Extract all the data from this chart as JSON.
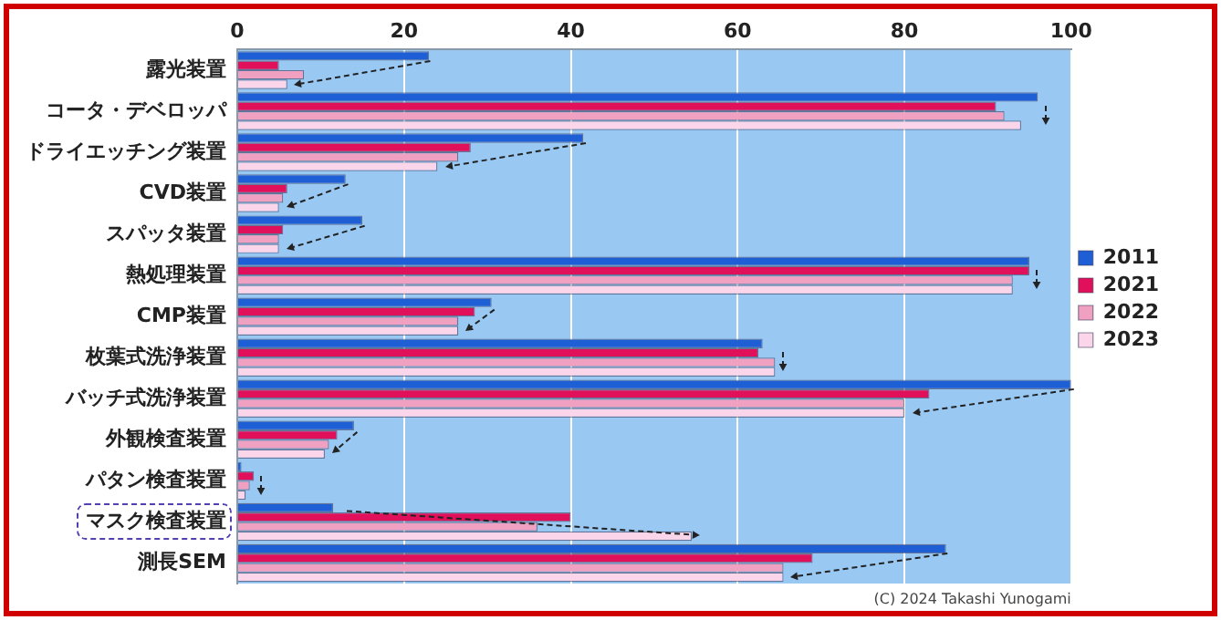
{
  "chart_data": {
    "type": "bar",
    "orientation": "horizontal",
    "categories": [
      "露光装置",
      "コータ・デベロッパ",
      "ドライエッチング装置",
      "CVD装置",
      "スパッタ装置",
      "熱処理装置",
      "CMP装置",
      "枚葉式洗浄装置",
      "バッチ式洗浄装置",
      "外観検査装置",
      "パタン検査装置",
      "マスク検査装置",
      "測長SEM"
    ],
    "series": [
      {
        "name": "2011",
        "color": "#1f5fd6",
        "values": [
          23,
          96,
          41.5,
          13,
          15,
          95,
          30.5,
          63,
          100,
          14,
          0.5,
          11.5,
          85
        ]
      },
      {
        "name": "2021",
        "color": "#e0105a",
        "values": [
          5,
          91,
          28,
          6,
          5.5,
          95,
          28.5,
          62.5,
          83,
          12,
          2,
          40,
          69
        ]
      },
      {
        "name": "2022",
        "color": "#f0a0c0",
        "values": [
          8,
          92,
          26.5,
          5.5,
          5,
          93,
          26.5,
          64.5,
          80,
          11,
          1.5,
          36,
          65.5
        ]
      },
      {
        "name": "2023",
        "color": "#fbd6ea",
        "values": [
          6,
          94,
          24,
          5,
          5,
          93,
          26.5,
          64.5,
          80,
          10.5,
          1,
          54.5,
          65.5
        ]
      }
    ],
    "xlim": [
      0,
      100
    ],
    "xticks": [
      0,
      20,
      40,
      60,
      80,
      100
    ],
    "grid": "x",
    "legend": "right",
    "annotations": [
      "(C) 2024 Takashi Yunogami"
    ]
  }
}
